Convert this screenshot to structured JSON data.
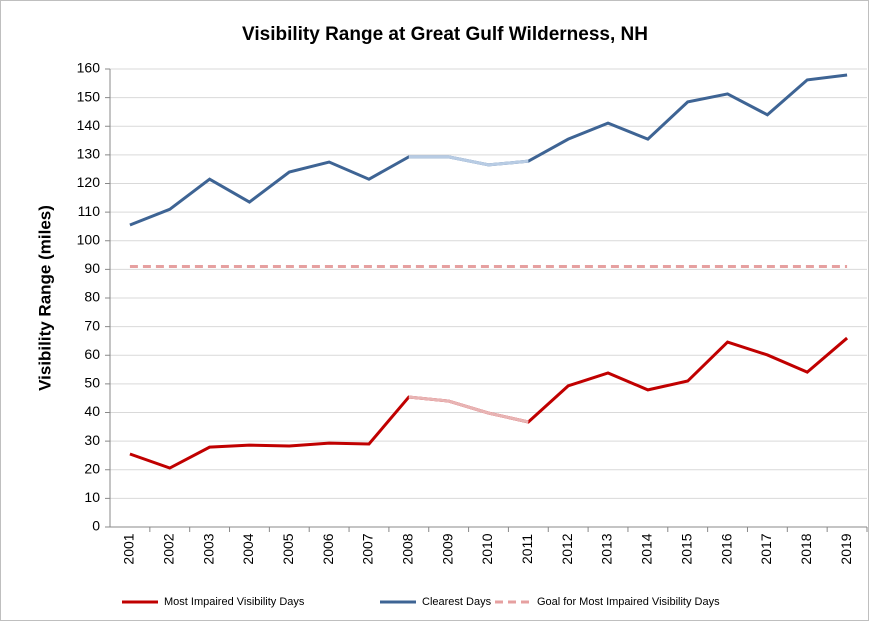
{
  "chart_data": {
    "type": "line",
    "title": "Visibility Range at Great Gulf Wilderness, NH",
    "y_label": "Visibility Range (miles)",
    "categories": [
      "2001",
      "2002",
      "2003",
      "2004",
      "2005",
      "2006",
      "2007",
      "2008",
      "2009",
      "2010",
      "2011",
      "2012",
      "2013",
      "2014",
      "2015",
      "2016",
      "2017",
      "2018",
      "2019"
    ],
    "series": [
      {
        "name": "Most Impaired Visibility Days",
        "color": "#c00000",
        "light_color": "#e8b4b4",
        "values": [
          25.5,
          20.6,
          27.9,
          28.6,
          28.3,
          29.3,
          29,
          45.4,
          44,
          39.8,
          36.7,
          49.3,
          53.8,
          47.9,
          51,
          64.6,
          60.1,
          54.1,
          66
        ]
      },
      {
        "name": "Clearest Days",
        "color": "#3e6494",
        "light_color": "#b8cce4",
        "values": [
          105.5,
          111,
          121.5,
          113.5,
          124,
          127.5,
          121.5,
          129.3,
          129.3,
          126.5,
          127.8,
          135.5,
          141.1,
          135.5,
          148.5,
          151.3,
          144,
          156.2,
          157.9
        ]
      },
      {
        "name": "Goal for Most Impaired Visibility Days",
        "color": "#e6a0a0",
        "dashed": true,
        "values": [
          91,
          91,
          91,
          91,
          91,
          91,
          91,
          91,
          91,
          91,
          91,
          91,
          91,
          91,
          91,
          91,
          91,
          91,
          91
        ]
      }
    ],
    "interpolated_range": [
      "2008",
      "2011"
    ],
    "ylim": [
      0,
      160
    ],
    "yticks": [
      0,
      10,
      20,
      30,
      40,
      50,
      60,
      70,
      80,
      90,
      100,
      110,
      120,
      130,
      140,
      150,
      160
    ],
    "grid": true,
    "legend": "bottom"
  }
}
